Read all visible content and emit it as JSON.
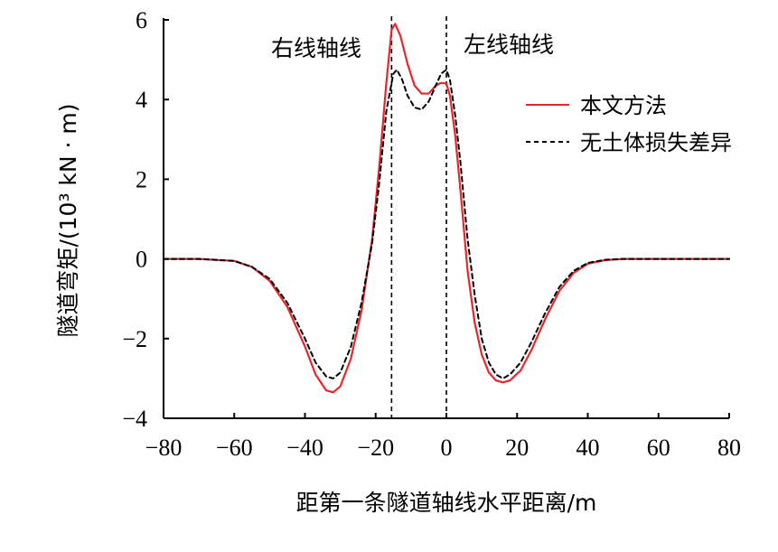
{
  "chart_data": {
    "type": "line",
    "title": "",
    "xlabel": "距第一条隧道轴线水平距离/m",
    "ylabel": "隧道弯矩/(10³ kN · m)",
    "xlim": [
      -80,
      80
    ],
    "ylim": [
      -4,
      6
    ],
    "xticks": [
      -80,
      -60,
      -40,
      -20,
      0,
      20,
      40,
      60,
      80
    ],
    "yticks": [
      -4,
      -2,
      0,
      2,
      4,
      6
    ],
    "grid": false,
    "legend_position": "right",
    "series": [
      {
        "name": "本文方法",
        "color": "#e8262b",
        "style": "solid",
        "x": [
          -80,
          -70,
          -60,
          -55,
          -50,
          -45,
          -40,
          -37,
          -34,
          -32,
          -30,
          -27,
          -24,
          -21,
          -19,
          -17,
          -15.5,
          -14.5,
          -13,
          -11,
          -9,
          -7,
          -5,
          -3,
          -1.5,
          0,
          1,
          2.5,
          4,
          6,
          8,
          10,
          12,
          14,
          16,
          18,
          21,
          24,
          28,
          32,
          36,
          40,
          45,
          50,
          60,
          70,
          80
        ],
        "y": [
          0,
          0,
          -0.05,
          -0.2,
          -0.55,
          -1.2,
          -2.2,
          -2.9,
          -3.3,
          -3.35,
          -3.2,
          -2.5,
          -1.3,
          0.5,
          2.3,
          4.4,
          5.75,
          5.9,
          5.6,
          4.9,
          4.35,
          4.15,
          4.15,
          4.35,
          4.42,
          4.4,
          4.1,
          3.1,
          1.7,
          -0.3,
          -1.6,
          -2.4,
          -2.85,
          -3.05,
          -3.1,
          -3.05,
          -2.8,
          -2.3,
          -1.5,
          -0.8,
          -0.35,
          -0.12,
          -0.03,
          0,
          0,
          0,
          0
        ]
      },
      {
        "name": "无土体损失差异",
        "color": "#000000",
        "style": "dashed",
        "x": [
          -80,
          -70,
          -60,
          -55,
          -50,
          -45,
          -40,
          -37,
          -34,
          -32,
          -30,
          -27,
          -24,
          -21,
          -19,
          -17,
          -15,
          -14,
          -12.5,
          -11,
          -9,
          -7,
          -5,
          -3,
          -1.5,
          0,
          1,
          2.5,
          4,
          6,
          8,
          10,
          12,
          14,
          16,
          18,
          21,
          24,
          28,
          32,
          36,
          40,
          45,
          50,
          60,
          70,
          80
        ],
        "y": [
          0,
          0,
          -0.05,
          -0.2,
          -0.5,
          -1.1,
          -2.0,
          -2.6,
          -2.95,
          -3.0,
          -2.85,
          -2.2,
          -1.1,
          0.4,
          1.9,
          3.7,
          4.65,
          4.75,
          4.5,
          4.1,
          3.8,
          3.75,
          3.95,
          4.35,
          4.65,
          4.75,
          4.5,
          3.6,
          2.4,
          0.5,
          -0.9,
          -2.0,
          -2.6,
          -2.9,
          -3.0,
          -2.9,
          -2.6,
          -2.1,
          -1.35,
          -0.7,
          -0.3,
          -0.1,
          -0.02,
          0,
          0,
          0,
          0
        ]
      }
    ],
    "annotations": [
      {
        "text": "右线轴线",
        "x": -15.5,
        "line": "vertical-dashed"
      },
      {
        "text": "左线轴线",
        "x": 0,
        "line": "vertical-dashed"
      }
    ]
  }
}
